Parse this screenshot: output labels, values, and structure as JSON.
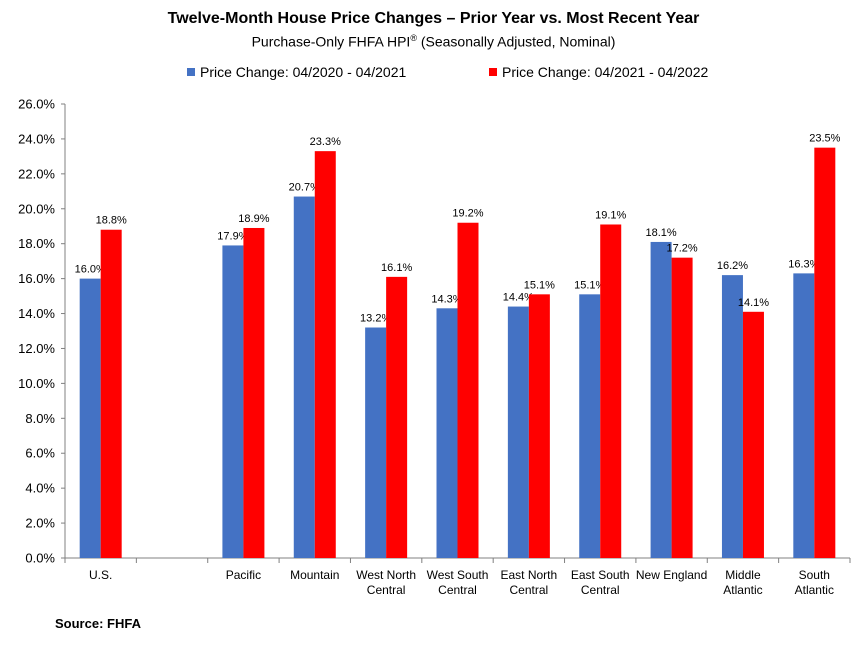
{
  "chart_data": {
    "type": "bar",
    "title": "Twelve-Month House Price Changes – Prior Year vs. Most Recent Year",
    "subtitle": "Purchase-Only FHFA HPI",
    "subtitle_mark": "®",
    "subtitle_suffix": " (Seasonally Adjusted, Nominal)",
    "categories": [
      [
        "U.S."
      ],
      [
        ""
      ],
      [
        "Pacific"
      ],
      [
        "Mountain"
      ],
      [
        "West North",
        "Central"
      ],
      [
        "West South",
        "Central"
      ],
      [
        "East North",
        "Central"
      ],
      [
        "East South",
        "Central"
      ],
      [
        "New England"
      ],
      [
        "Middle",
        "Atlantic"
      ],
      [
        "South",
        "Atlantic"
      ]
    ],
    "series": [
      {
        "name": "Price Change:  04/2020 - 04/2021",
        "color": "#4472C4",
        "values": [
          16.0,
          null,
          17.9,
          20.7,
          13.2,
          14.3,
          14.4,
          15.1,
          18.1,
          16.2,
          16.3
        ],
        "labels": [
          "16.0%",
          "",
          "17.9%",
          "20.7%",
          "13.2%",
          "14.3%",
          "14.4%",
          "15.1%",
          "18.1%",
          "16.2%",
          "16.3%"
        ]
      },
      {
        "name": "Price Change:  04/2021 - 04/2022",
        "color": "#FF0000",
        "values": [
          18.8,
          null,
          18.9,
          23.3,
          16.1,
          19.2,
          15.1,
          19.1,
          17.2,
          14.1,
          23.5
        ],
        "labels": [
          "18.8%",
          "",
          "18.9%",
          "23.3%",
          "16.1%",
          "19.2%",
          "15.1%",
          "19.1%",
          "17.2%",
          "14.1%",
          "23.5%"
        ]
      }
    ],
    "ylim": [
      0,
      26
    ],
    "ytick_step": 2,
    "ytick_labels": [
      "0.0%",
      "2.0%",
      "4.0%",
      "6.0%",
      "8.0%",
      "10.0%",
      "12.0%",
      "14.0%",
      "16.0%",
      "18.0%",
      "20.0%",
      "22.0%",
      "24.0%",
      "26.0%"
    ],
    "xlabel": "",
    "ylabel": "",
    "grid": false,
    "legend_position": "top"
  },
  "source_label": "Source: FHFA"
}
